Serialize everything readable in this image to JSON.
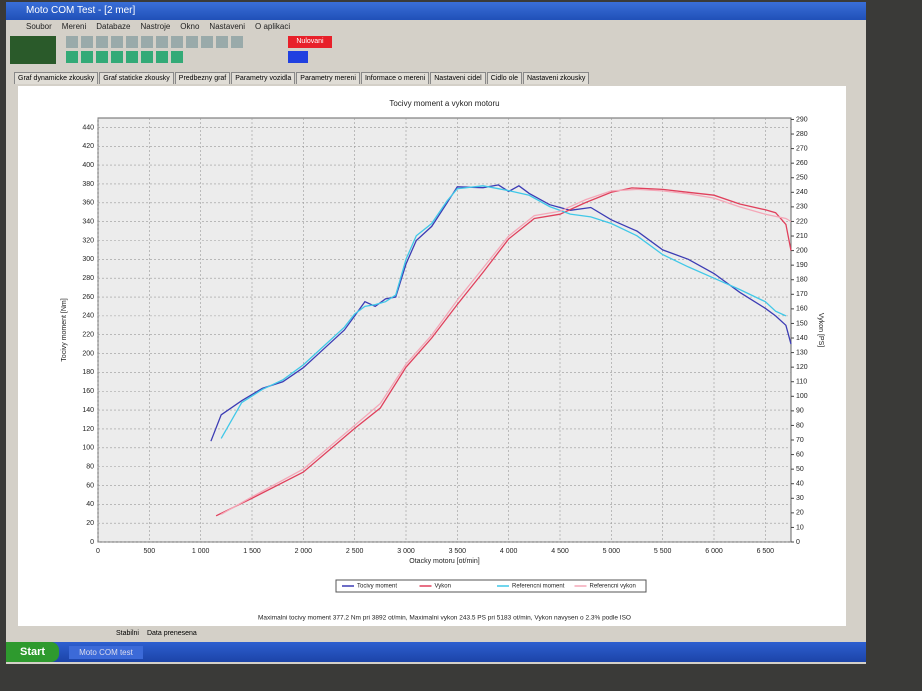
{
  "window": {
    "title": "Moto COM Test - [2 mer]",
    "menu": [
      "Soubor",
      "Mereni",
      "Databaze",
      "Nastroje",
      "Okno",
      "Nastaveni",
      "O aplikaci"
    ],
    "button": "Nulovani",
    "tabs": [
      "Graf dynamicke zkousky",
      "Graf staticke zkousky",
      "Predbezny graf",
      "Parametry vozidla",
      "Parametry mereni",
      "Informace o mereni",
      "Nastaveni cidel",
      "Cidlo ole",
      "Nastaveni zkousky"
    ],
    "status": [
      "Stabilni",
      "Data prenesena"
    ],
    "taskbar": [
      "Start",
      "Moto COM test"
    ]
  },
  "chart_data": {
    "type": "line",
    "title": "Tocivy moment a vykon motoru",
    "x_label": "Otacky motoru [ot/min]",
    "y_label": "Tocivy moment [Nm]",
    "y2_label": "Vykon [PS]",
    "footer": "Maximalni tocivy moment 377.2 Nm pri 3892 ot/min, Maximalni vykon 243.5 PS pri 5183 ot/min, Vykon navysen o 2.3% podle ISO",
    "xlim": [
      0,
      6750
    ],
    "xticks": [
      0,
      500,
      {
        "value": 1000,
        "label": "1 000"
      },
      {
        "value": 1500,
        "label": "1 500"
      },
      {
        "value": 2000,
        "label": "2 000"
      },
      {
        "value": 2500,
        "label": "2 500"
      },
      {
        "value": 3000,
        "label": "3 000"
      },
      {
        "value": 3500,
        "label": "3 500"
      },
      {
        "value": 4000,
        "label": "4 000"
      },
      {
        "value": 4500,
        "label": "4 500"
      },
      {
        "value": 5000,
        "label": "5 000"
      },
      {
        "value": 5500,
        "label": "5 500"
      },
      {
        "value": 6000,
        "label": "6 000"
      },
      {
        "value": 6500,
        "label": "6 500"
      }
    ],
    "ylim": [
      0,
      450
    ],
    "yticks": [
      0,
      20,
      40,
      60,
      80,
      100,
      120,
      140,
      160,
      180,
      200,
      220,
      240,
      260,
      280,
      300,
      320,
      340,
      360,
      380,
      400,
      420,
      440
    ],
    "y2lim": [
      0,
      291
    ],
    "y2ticks": [
      0,
      10,
      20,
      30,
      40,
      50,
      60,
      70,
      80,
      90,
      100,
      110,
      120,
      130,
      140,
      150,
      160,
      170,
      180,
      190,
      200,
      210,
      220,
      230,
      240,
      250,
      260,
      270,
      280,
      290
    ],
    "grid": true,
    "legend": "bottom",
    "series": [
      {
        "name": "Tocivy moment",
        "color": "#3c3cb4",
        "x": [
          1100,
          1200,
          1400,
          1600,
          1800,
          2000,
          2200,
          2400,
          2500,
          2600,
          2700,
          2800,
          2900,
          3000,
          3100,
          3250,
          3400,
          3500,
          3750,
          3900,
          4000,
          4100,
          4200,
          4400,
          4600,
          4800,
          5000,
          5250,
          5500,
          5750,
          6000,
          6250,
          6500,
          6600,
          6700,
          6750
        ],
        "values": [
          107,
          135,
          150,
          163,
          170,
          185,
          205,
          225,
          240,
          255,
          250,
          258,
          260,
          295,
          320,
          335,
          360,
          377,
          376,
          379,
          372,
          378,
          370,
          358,
          352,
          355,
          342,
          330,
          310,
          300,
          285,
          265,
          248,
          240,
          230,
          210
        ]
      },
      {
        "name": "Vykon",
        "color": "#e0405c",
        "axis": "y2",
        "x": [
          1150,
          1500,
          2000,
          2500,
          2750,
          3000,
          3250,
          3500,
          3750,
          4000,
          4250,
          4500,
          4750,
          5000,
          5200,
          5500,
          5750,
          6000,
          6250,
          6500,
          6600,
          6700,
          6750
        ],
        "values": [
          18,
          30,
          48,
          78,
          92,
          120,
          140,
          163,
          185,
          208,
          222,
          225,
          233,
          240,
          243,
          242,
          240,
          238,
          232,
          228,
          226,
          218,
          200
        ]
      },
      {
        "name": "Referencni moment",
        "color": "#40c8e8",
        "x": [
          1200,
          1400,
          1600,
          1800,
          2000,
          2200,
          2400,
          2500,
          2600,
          2700,
          2800,
          2900,
          3000,
          3100,
          3250,
          3400,
          3500,
          3750,
          3900,
          4000,
          4200,
          4400,
          4600,
          4800,
          5000,
          5250,
          5500,
          5750,
          6000,
          6250,
          6500,
          6600,
          6700
        ],
        "values": [
          110,
          148,
          162,
          172,
          188,
          208,
          228,
          242,
          250,
          252,
          255,
          262,
          300,
          325,
          338,
          362,
          375,
          378,
          375,
          373,
          368,
          356,
          348,
          345,
          338,
          325,
          305,
          292,
          280,
          268,
          255,
          245,
          240
        ]
      },
      {
        "name": "Referencni vykon",
        "color": "#f4a8b8",
        "axis": "y2",
        "x": [
          1200,
          1500,
          2000,
          2500,
          2750,
          3000,
          3250,
          3500,
          3750,
          4000,
          4250,
          4500,
          4750,
          5000,
          5250,
          5500,
          5750,
          6000,
          6250,
          6500,
          6700,
          6750
        ],
        "values": [
          19,
          31,
          50,
          80,
          95,
          122,
          142,
          166,
          188,
          210,
          224,
          227,
          235,
          241,
          242,
          241,
          239,
          236,
          230,
          225,
          222,
          220
        ]
      }
    ]
  }
}
